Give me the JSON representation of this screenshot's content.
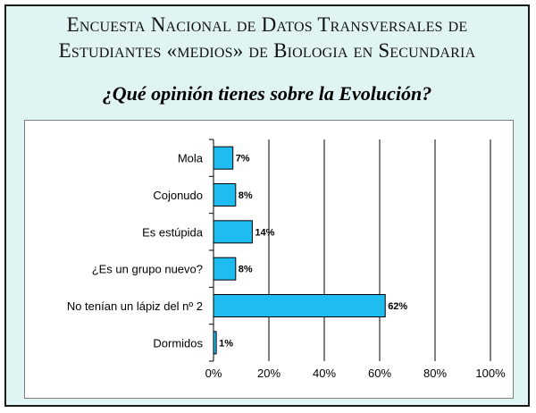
{
  "header": {
    "title_line1": "Encuesta Nacional de Datos Transversales de",
    "title_line2": "Estudiantes «medios» de Biologia en Secundaria",
    "question": "¿Qué opinión tienes sobre la Evolución?"
  },
  "colors": {
    "background": "#e1f4f4",
    "bar_fill": "#1ebcf0",
    "bar_stroke": "#000000"
  },
  "chart_data": {
    "type": "bar",
    "orientation": "horizontal",
    "categories": [
      "Mola",
      "Cojonudo",
      "Es estúpida",
      "¿Es un grupo nuevo?",
      "No tenían un lápiz del nº 2",
      "Dormidos"
    ],
    "values": [
      7,
      8,
      14,
      8,
      62,
      1
    ],
    "data_labels": [
      "7%",
      "8%",
      "14%",
      "8%",
      "62%",
      "1%"
    ],
    "xlim": [
      0,
      100
    ],
    "x_ticks": [
      "0%",
      "20%",
      "40%",
      "60%",
      "80%",
      "100%"
    ],
    "x_tick_values": [
      0,
      20,
      40,
      60,
      80,
      100
    ],
    "grid": "vertical gridlines",
    "legend": "none"
  }
}
